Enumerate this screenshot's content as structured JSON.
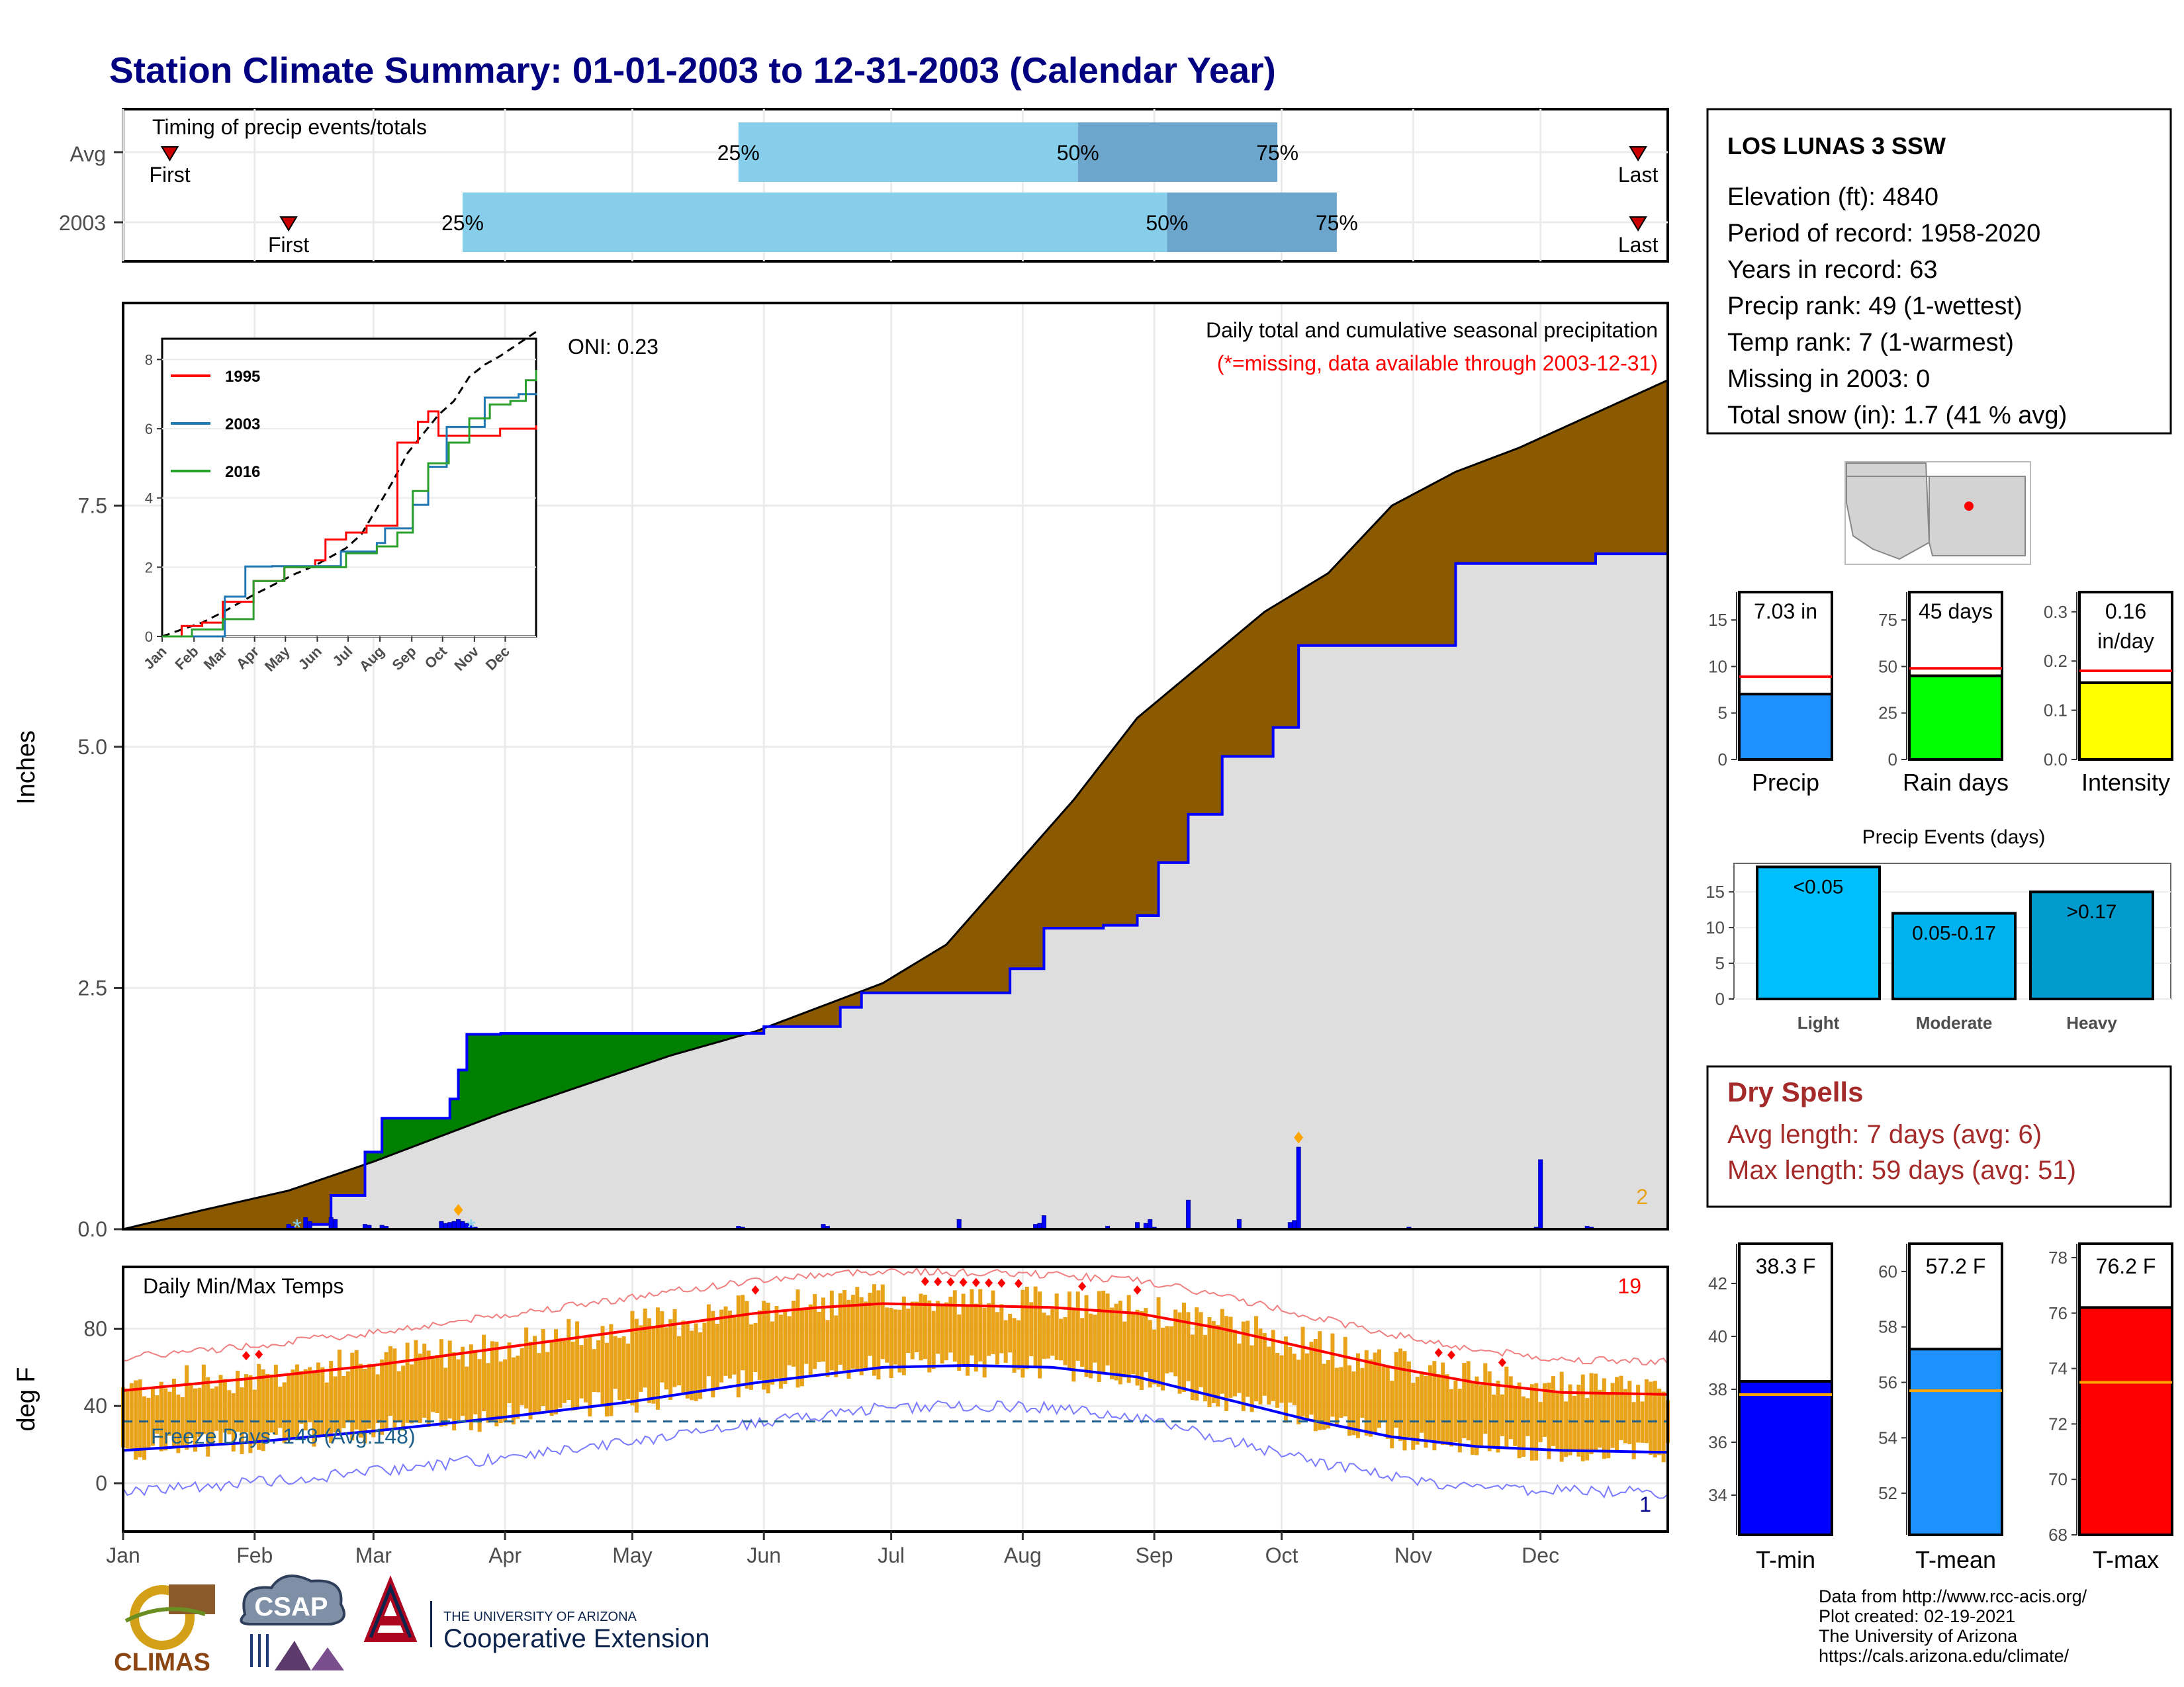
{
  "title": "Station Climate Summary: 01-01-2003 to 12-31-2003 (Calendar Year)",
  "colors": {
    "navy": "#000080",
    "brown": "#8B5A00",
    "green": "#008000",
    "gray": "#DEDEDE",
    "blue": "#0000FF",
    "red": "#FF0000",
    "orange": "#E8A31A",
    "lightblue": "#87CEEB",
    "midblue": "#6CA6CD",
    "darkred": "#A52A2A"
  },
  "timing": {
    "title": "Timing of precip events/totals",
    "rows": [
      {
        "label": "Avg",
        "first_doy": 12,
        "last_doy": 358,
        "p25_doy": 146,
        "p50_doy": 226,
        "p75_doy": 273,
        "first_label": "First",
        "last_label": "Last",
        "p25_label": "25%",
        "p50_label": "50%",
        "p75_label": "75%"
      },
      {
        "label": "2003",
        "first_doy": 40,
        "last_doy": 358,
        "p25_doy": 81,
        "p50_doy": 247,
        "p75_doy": 287,
        "first_label": "First",
        "last_label": "Last",
        "p25_label": "25%",
        "p50_label": "50%",
        "p75_label": "75%"
      }
    ]
  },
  "months": [
    "Jan",
    "Feb",
    "Mar",
    "Apr",
    "May",
    "Jun",
    "Jul",
    "Aug",
    "Sep",
    "Oct",
    "Nov",
    "Dec"
  ],
  "month_start_doy": [
    1,
    32,
    60,
    91,
    121,
    152,
    182,
    213,
    244,
    274,
    305,
    335
  ],
  "precip_panel": {
    "ylabel": "Inches",
    "yticks": [
      "0.0",
      "2.5",
      "5.0",
      "7.5"
    ],
    "ytick_values": [
      0,
      2.5,
      5.0,
      7.5
    ],
    "title_line1": "Daily total and cumulative seasonal precipitation",
    "title_line2": "(*=missing, data available through 2003-12-31)",
    "oni": "ONI: 0.23",
    "corner_count": "2"
  },
  "inset": {
    "yticks": [
      "0",
      "2",
      "4",
      "6",
      "8"
    ],
    "ytick_values": [
      0,
      2,
      4,
      6,
      8
    ],
    "xticks": [
      "Jan",
      "Feb",
      "Mar",
      "Apr",
      "May",
      "Jun",
      "Jul",
      "Aug",
      "Sep",
      "Oct",
      "Nov",
      "Dec"
    ],
    "legend": [
      {
        "name": "1995",
        "color": "#FF0000"
      },
      {
        "name": "2003",
        "color": "#1F77B4"
      },
      {
        "name": "2016",
        "color": "#2CA02C"
      }
    ]
  },
  "temp_panel": {
    "title": "Daily Min/Max Temps",
    "ylabel": "deg F",
    "yticks": [
      "0",
      "40",
      "80"
    ],
    "ytick_values": [
      0,
      40,
      80
    ],
    "freeze_label": "Freeze Days: 148 (Avg:148)",
    "freeze_temp": 32,
    "count_hot": "19",
    "count_cold": "1"
  },
  "station": {
    "name": "LOS LUNAS 3 SSW",
    "lines": [
      "Elevation (ft): 4840",
      "Period of record: 1958-2020",
      "Years in record: 63",
      "Precip rank: 49 (1-wettest)",
      "Temp rank: 7 (1-warmest)",
      "Missing in 2003: 0",
      "Total snow (in): 1.7 (41 % avg)"
    ]
  },
  "summary_bars": [
    {
      "name": "Precip",
      "value_label": "7.03 in",
      "value": 7.03,
      "avg": 8.9,
      "ymax": 18,
      "yticks": [
        "0",
        "5",
        "10",
        "15"
      ],
      "ytick_values": [
        0,
        5,
        10,
        15
      ],
      "color": "#1E90FF"
    },
    {
      "name": "Rain days",
      "value_label": "45 days",
      "value": 45,
      "avg": 49,
      "ymax": 90,
      "yticks": [
        "0",
        "25",
        "50",
        "75"
      ],
      "ytick_values": [
        0,
        25,
        50,
        75
      ],
      "color": "#00FF00"
    },
    {
      "name": "Intensity",
      "value_label": "0.16",
      "value_label2": "in/day",
      "value": 0.156,
      "avg": 0.18,
      "ymax": 0.34,
      "yticks": [
        "0.0",
        "0.1",
        "0.2",
        "0.3"
      ],
      "ytick_values": [
        0,
        0.1,
        0.2,
        0.3
      ],
      "color": "#FFFF00"
    }
  ],
  "precip_events": {
    "title": "Precip Events (days)",
    "yticks": [
      "0",
      "5",
      "10",
      "15"
    ],
    "ytick_values": [
      0,
      5,
      10,
      15
    ],
    "ymax": 19,
    "bars": [
      {
        "name": "Light",
        "range_label": "<0.05",
        "value": 18.5,
        "color": "#00BFFF"
      },
      {
        "name": "Moderate",
        "range_label": "0.05-0.17",
        "value": 12,
        "color": "#00B2EE"
      },
      {
        "name": "Heavy",
        "range_label": ">0.17",
        "value": 15,
        "color": "#009ACD"
      }
    ]
  },
  "dry_spells": {
    "title": "Dry Spells",
    "line1": "Avg length: 7 days (avg: 6)",
    "line2": "Max length: 59 days (avg: 51)"
  },
  "temp_bars": [
    {
      "name": "T-min",
      "value_label": "38.3 F",
      "value": 38.3,
      "avg": 37.8,
      "ymin": 32.5,
      "ymax": 43.5,
      "yticks": [
        "34",
        "36",
        "38",
        "40",
        "42"
      ],
      "ytick_values": [
        34,
        36,
        38,
        40,
        42
      ],
      "color": "#0000FF"
    },
    {
      "name": "T-mean",
      "value_label": "57.2 F",
      "value": 57.2,
      "avg": 55.7,
      "ymin": 50.5,
      "ymax": 61,
      "yticks": [
        "52",
        "54",
        "56",
        "58",
        "60"
      ],
      "ytick_values": [
        52,
        54,
        56,
        58,
        60
      ],
      "color": "#1E90FF"
    },
    {
      "name": "T-max",
      "value_label": "76.2 F",
      "value": 76.2,
      "avg": 73.5,
      "ymin": 68,
      "ymax": 78.5,
      "yticks": [
        "68",
        "70",
        "72",
        "74",
        "76",
        "78"
      ],
      "ytick_values": [
        68,
        70,
        72,
        74,
        76,
        78
      ],
      "color": "#FF0000"
    }
  ],
  "credits": [
    "Data from http://www.rcc-acis.org/",
    "Plot created: 02-19-2021",
    "The University of Arizona",
    "https://cals.arizona.edu/climate/"
  ],
  "logos": {
    "climas": "CLIMAS",
    "csap": "CSAP",
    "ua_line1": "THE UNIVERSITY OF ARIZONA",
    "ua_line2": "Cooperative Extension"
  },
  "chart_data": [
    {
      "type": "area",
      "title": "Daily total and cumulative seasonal precipitation",
      "ylabel": "Inches",
      "xlim": [
        1,
        365
      ],
      "ylim": [
        0,
        9.6
      ],
      "cumulative_avg": {
        "x": [
          1,
          20,
          40,
          60,
          75,
          90,
          110,
          130,
          150,
          165,
          180,
          195,
          210,
          225,
          240,
          255,
          270,
          285,
          300,
          315,
          330,
          345,
          365
        ],
        "y": [
          0,
          0.2,
          0.4,
          0.7,
          0.95,
          1.2,
          1.5,
          1.8,
          2.05,
          2.3,
          2.55,
          2.95,
          3.7,
          4.45,
          5.3,
          5.85,
          6.4,
          6.8,
          7.5,
          7.85,
          8.1,
          8.4,
          8.8
        ]
      },
      "cumulative_2003": {
        "x": [
          1,
          40,
          45,
          50,
          58,
          62,
          75,
          78,
          80,
          82,
          90,
          108,
          145,
          152,
          170,
          175,
          195,
          210,
          218,
          232,
          240,
          245,
          252,
          260,
          272,
          278,
          298,
          315,
          345,
          348,
          365
        ],
        "y": [
          0,
          0,
          0.05,
          0.35,
          0.8,
          1.15,
          1.15,
          1.35,
          1.65,
          2.02,
          2.03,
          2.03,
          2.03,
          2.1,
          2.3,
          2.45,
          2.45,
          2.7,
          3.12,
          3.15,
          3.25,
          3.8,
          4.3,
          4.9,
          5.2,
          6.05,
          6.05,
          6.9,
          6.9,
          7.0,
          7.03
        ]
      },
      "daily_bars": {
        "x": [
          40,
          41,
          44,
          45,
          50,
          51,
          58,
          59,
          62,
          63,
          76,
          77,
          78,
          79,
          80,
          81,
          82,
          83,
          84,
          146,
          147,
          166,
          167,
          198,
          216,
          217,
          218,
          233,
          240,
          242,
          243,
          244,
          252,
          264,
          276,
          277,
          278,
          304,
          334,
          335,
          346,
          347
        ],
        "y": [
          0.05,
          0.03,
          0.12,
          0.08,
          0.12,
          0.1,
          0.05,
          0.04,
          0.04,
          0.03,
          0.08,
          0.06,
          0.07,
          0.08,
          0.1,
          0.08,
          0.06,
          0.04,
          0.02,
          0.03,
          0.02,
          0.05,
          0.03,
          0.1,
          0.05,
          0.06,
          0.14,
          0.03,
          0.07,
          0.06,
          0.1,
          0.02,
          0.3,
          0.1,
          0.07,
          0.09,
          0.85,
          0.02,
          0.02,
          0.72,
          0.03,
          0.02
        ]
      }
    },
    {
      "type": "line",
      "title": "Daily Min/Max Temps",
      "ylabel": "deg F",
      "ylim": [
        -25,
        112
      ],
      "avg_tmax": {
        "x": [
          1,
          30,
          60,
          90,
          120,
          150,
          165,
          180,
          200,
          220,
          240,
          260,
          280,
          300,
          320,
          340,
          365
        ],
        "y": [
          48,
          54,
          61,
          70,
          79,
          88,
          91,
          93,
          92,
          91,
          88,
          80,
          70,
          60,
          52,
          47,
          46
        ]
      },
      "avg_tmin": {
        "x": [
          1,
          30,
          60,
          90,
          120,
          150,
          165,
          180,
          200,
          220,
          240,
          260,
          280,
          300,
          320,
          340,
          365
        ],
        "y": [
          17,
          21,
          27,
          34,
          42,
          52,
          56,
          60,
          61,
          60,
          55,
          44,
          33,
          24,
          19,
          17,
          16
        ]
      }
    },
    {
      "type": "line",
      "title": "",
      "xlabel": "",
      "ylabel": "",
      "ylim": [
        0,
        8.6
      ],
      "series": [
        {
          "name": "1995",
          "x": [
            1,
            20,
            40,
            60,
            90,
            120,
            150,
            160,
            180,
            200,
            230,
            250,
            260,
            270,
            300,
            330,
            365
          ],
          "y": [
            0,
            0.3,
            0.4,
            1.0,
            1.6,
            2.0,
            2.2,
            2.8,
            3.0,
            3.2,
            5.6,
            6.2,
            6.5,
            5.8,
            5.8,
            6.0,
            6.1
          ]
        },
        {
          "name": "2003",
          "x": [
            1,
            40,
            62,
            82,
            108,
            150,
            175,
            210,
            218,
            245,
            260,
            278,
            315,
            348,
            365
          ],
          "y": [
            0,
            0,
            1.15,
            2.02,
            2.03,
            2.03,
            2.45,
            2.7,
            3.12,
            3.8,
            4.9,
            6.05,
            6.9,
            7.0,
            7.03
          ]
        },
        {
          "name": "2016",
          "x": [
            1,
            30,
            60,
            90,
            120,
            150,
            180,
            210,
            230,
            245,
            260,
            280,
            300,
            320,
            340,
            355,
            365
          ],
          "y": [
            0,
            0.2,
            0.5,
            1.6,
            2.0,
            2.0,
            2.4,
            2.6,
            3.0,
            4.2,
            5.0,
            5.6,
            6.3,
            6.7,
            6.8,
            7.4,
            7.7
          ]
        }
      ]
    }
  ]
}
